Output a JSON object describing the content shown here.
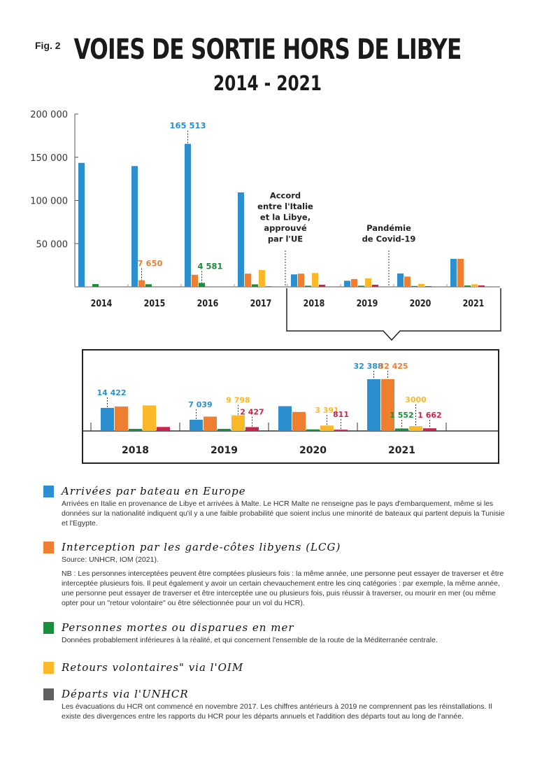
{
  "figure_label": "Fig. 2",
  "chart_data": {
    "type": "bar",
    "title": "VOIES DE SORTIE HORS DE LIBYE",
    "subtitle": "2014 - 2021",
    "xlabel": "",
    "ylabel": "",
    "ylim": [
      0,
      200000
    ],
    "yticks": [
      {
        "value": 50000,
        "label": "50 000"
      },
      {
        "value": 100000,
        "label": "100 000"
      },
      {
        "value": 150000,
        "label": "150 000"
      },
      {
        "value": 200000,
        "label": "200 000"
      }
    ],
    "categories": [
      "2014",
      "2015",
      "2016",
      "2017",
      "2018",
      "2019",
      "2020",
      "2021"
    ],
    "series": [
      {
        "name": "Arrivées par bateau en Europe",
        "color": "#2b8fd0",
        "values": [
          143500,
          139800,
          165513,
          109300,
          14422,
          7039,
          15500,
          32388
        ]
      },
      {
        "name": "Interception par les garde-côtes libyens (LCG)",
        "color": "#ef7f30",
        "values": [
          300,
          7650,
          14000,
          15300,
          15300,
          9000,
          11900,
          32425
        ]
      },
      {
        "name": "Personnes mortes ou disparues en mer",
        "color": "#1b8e3e",
        "values": [
          3200,
          3000,
          4581,
          2900,
          1300,
          1300,
          1000,
          1552
        ]
      },
      {
        "name": "Retours volontaires\" via l'OIM",
        "color": "#fbb829",
        "values": [
          0,
          0,
          0,
          19400,
          16000,
          9798,
          3391,
          3000
        ]
      },
      {
        "name": "Départs via l'UNHCR",
        "color": "#c9244b",
        "values": [
          400,
          300,
          300,
          600,
          2500,
          2427,
          811,
          1662
        ]
      }
    ],
    "main_labels": [
      {
        "category": "2016",
        "series": 0,
        "text": "165 513"
      },
      {
        "category": "2015",
        "series": 1,
        "text": "7 650"
      },
      {
        "category": "2016",
        "series": 2,
        "text": "4 581"
      }
    ],
    "annotations": [
      {
        "between": [
          "2017",
          "2018"
        ],
        "lines": [
          "Accord",
          "entre l'Italie",
          "et la Libye,",
          "approuvé",
          "par l'UE"
        ]
      },
      {
        "between": [
          "2019",
          "2020"
        ],
        "lines": [
          "Pandémie",
          "de Covid-19"
        ]
      }
    ],
    "detail": {
      "categories": [
        "2018",
        "2019",
        "2020",
        "2021"
      ],
      "ylim": [
        0,
        35000
      ],
      "labels": [
        {
          "category": "2018",
          "series": 0,
          "text": "14 422"
        },
        {
          "category": "2019",
          "series": 0,
          "text": "7 039"
        },
        {
          "category": "2019",
          "series": 3,
          "text": "9 798"
        },
        {
          "category": "2019",
          "series": 4,
          "text": "2 427"
        },
        {
          "category": "2020",
          "series": 3,
          "text": "3 391"
        },
        {
          "category": "2020",
          "series": 4,
          "text": "811"
        },
        {
          "category": "2021",
          "series": 0,
          "text": "32 388"
        },
        {
          "category": "2021",
          "series": 1,
          "text": "32 425"
        },
        {
          "category": "2021",
          "series": 2,
          "text": "1 552"
        },
        {
          "category": "2021",
          "series": 3,
          "text": "3000"
        },
        {
          "category": "2021",
          "series": 4,
          "text": "1 662"
        }
      ]
    }
  },
  "legend": [
    {
      "title": "Arrivées par bateau en Europe",
      "color": "#2b8fd0",
      "body": [
        "Arrivées en Italie en provenance de Libye et arrivées à Malte. Le HCR Malte ne renseigne pas le pays d'embarquement, même si les données sur la nationalité indiquent qu'il y a une faible probabilité que soient inclus une minorité de bateaux qui partent depuis la Tunisie et l'Egypte."
      ]
    },
    {
      "title": "Interception par les garde-côtes libyens (LCG)",
      "color": "#ef7f30",
      "body": [
        "Source: UNHCR, IOM (2021).",
        "NB : Les personnes interceptées peuvent être comptées plusieurs fois : la même année, une personne peut essayer de traverser et être interceptée plusieurs fois. Il peut également y avoir un certain chevauchement entre les cinq catégories : par exemple, la même année, une personne peut essayer de traverser et être interceptée une ou plusieurs fois, puis réussir à traverser, ou mourir en mer (ou même opter pour un \"retour volontaire\" ou être sélectionnée pour un vol du HCR)."
      ]
    },
    {
      "title": "Personnes mortes ou disparues en mer",
      "color": "#1b8e3e",
      "body": [
        "Données probablement inférieures à la réalité, et qui concernent l'ensemble de la route de la Méditerranée centrale."
      ]
    },
    {
      "title": "Retours volontaires\" via l'OIM",
      "color": "#fbb829",
      "body": []
    },
    {
      "title": "Départs via l'UNHCR",
      "color": "#606060",
      "body": [
        "Les évacuations du HCR ont commencé en novembre 2017. Les chiffres antérieurs à 2019 ne comprennent pas les réinstallations. Il existe des divergences entre les rapports du HCR pour les départs annuels et l'addition des départs tout au long de l'année."
      ]
    }
  ]
}
